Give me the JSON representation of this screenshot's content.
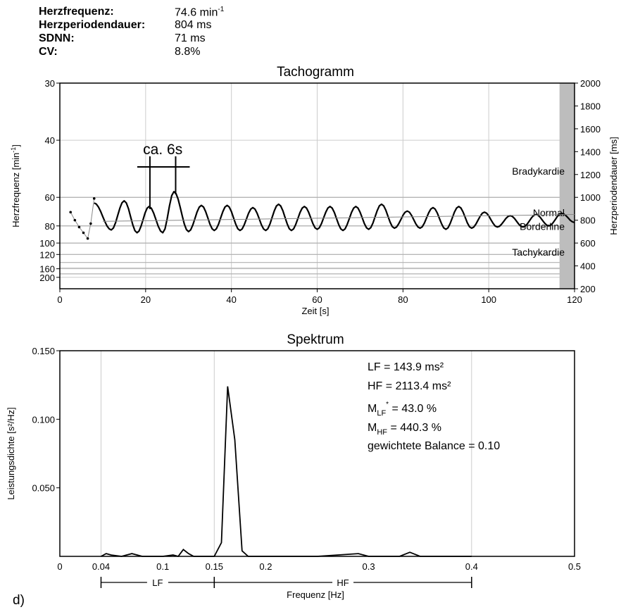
{
  "stats": {
    "heart_rate_label": "Herzfrequenz:",
    "heart_rate_value": "74.6 min",
    "heart_rate_unit_sup": "-1",
    "period_label": "Herzperiodendauer:",
    "period_value": "804 ms",
    "sdnn_label": "SDNN:",
    "sdnn_value": "71 ms",
    "cv_label": "CV:",
    "cv_value": "8.8%"
  },
  "panel_letter": "d)",
  "colors": {
    "line": "#000000",
    "grid": "#cccccc",
    "bands": "#b0b0b0",
    "shade": "#bdbdbd"
  },
  "chart_data": [
    {
      "type": "line",
      "title": "Tachogramm",
      "xlabel": "Zeit [s]",
      "ylabel_left": "Herzfrequenz [min",
      "ylabel_left_sup": "-1",
      "ylabel_left_end": "]",
      "ylabel_right": "Herzperiodendauer [ms]",
      "xlim": [
        0,
        120
      ],
      "ylim_right": [
        200,
        2000
      ],
      "x_ticks": [
        0,
        20,
        40,
        60,
        80,
        100,
        120
      ],
      "right_ticks": [
        200,
        400,
        600,
        800,
        1000,
        1200,
        1400,
        1600,
        1800,
        2000
      ],
      "left_ticks": [
        30,
        40,
        60,
        80,
        100,
        120,
        160,
        200
      ],
      "grid": true,
      "zones": [
        {
          "label": "Bradykardie",
          "boundary_ms": 1000
        },
        {
          "label": "Normal",
          "boundary_ms": 750
        },
        {
          "label": "Borderline",
          "boundary_ms": 600
        },
        {
          "label": "Tachykardie",
          "boundary_ms": 500
        }
      ],
      "extra_bands_ms": [
        430,
        380,
        330
      ],
      "annotation": {
        "text": "ca. 6s",
        "x_start": 21,
        "x_end": 27
      },
      "shaded_x": [
        116.5,
        120
      ],
      "series": [
        {
          "style": "dotted-start",
          "points": [
            [
              2.5,
              870
            ],
            [
              3.5,
              800
            ],
            [
              4.5,
              740
            ],
            [
              5.5,
              690
            ],
            [
              6.5,
              640
            ],
            [
              7.2,
              770
            ],
            [
              8,
              990
            ]
          ]
        },
        {
          "style": "rr",
          "mean": 800,
          "start": 8,
          "end": 120,
          "peaks": [
            [
              15,
              970
            ],
            [
              20.8,
              920
            ],
            [
              26.6,
              1050
            ],
            [
              33,
              930
            ],
            [
              39,
              930
            ],
            [
              45,
              910
            ],
            [
              51,
              940
            ],
            [
              57,
              920
            ],
            [
              63,
              920
            ],
            [
              69,
              920
            ],
            [
              75,
              940
            ],
            [
              81,
              880
            ],
            [
              87,
              910
            ],
            [
              93,
              920
            ],
            [
              99,
              870
            ],
            [
              105,
              840
            ],
            [
              111,
              850
            ],
            [
              117,
              860
            ]
          ],
          "troughs": [
            [
              12,
              715
            ],
            [
              18,
              690
            ],
            [
              24,
              690
            ],
            [
              30,
              700
            ],
            [
              36,
              710
            ],
            [
              42,
              710
            ],
            [
              48,
              710
            ],
            [
              54,
              710
            ],
            [
              60,
              720
            ],
            [
              66,
              710
            ],
            [
              72,
              720
            ],
            [
              78,
              730
            ],
            [
              84,
              730
            ],
            [
              90,
              720
            ],
            [
              96,
              730
            ],
            [
              102,
              740
            ],
            [
              108,
              740
            ],
            [
              114,
              750
            ],
            [
              120,
              780
            ]
          ]
        },
        {
          "style": "thin-mean",
          "points": [
            [
              10,
              790
            ],
            [
              120,
              850
            ]
          ]
        }
      ]
    },
    {
      "type": "line",
      "title": "Spektrum",
      "xlabel": "Frequenz [Hz]",
      "ylabel": "Leistungsdichte [s²/Hz]",
      "xlim": [
        0,
        0.5
      ],
      "ylim": [
        0,
        0.15
      ],
      "x_tick_labels": [
        "0",
        "0.04",
        "0.1",
        "0.15",
        "0.2",
        "0.3",
        "0.4",
        "0.5"
      ],
      "x_ticks": [
        0,
        0.04,
        0.1,
        0.15,
        0.2,
        0.3,
        0.4,
        0.5
      ],
      "y_tick_labels": [
        "0.050",
        "0.100",
        "0.150"
      ],
      "y_ticks": [
        0.05,
        0.1,
        0.15
      ],
      "grid_x": [
        0.04,
        0.15,
        0.4
      ],
      "band_labels": [
        {
          "label": "LF",
          "from": 0.04,
          "to": 0.15
        },
        {
          "label": "HF",
          "from": 0.15,
          "to": 0.4
        }
      ],
      "annotations": {
        "lf": "LF = 143.9 ms²",
        "hf": "HF = 2113.4 ms²",
        "mlf_base": "M",
        "mlf_sub": "LF",
        "mlf_sup": "*",
        "mlf_rest": " = 43.0 %",
        "mhf_base": "M",
        "mhf_sub": "HF",
        "mhf_rest": " = 440.3 %",
        "balance": "gewichtete Balance = 0.10"
      },
      "values": [
        [
          0.04,
          0.0
        ],
        [
          0.045,
          0.002
        ],
        [
          0.05,
          0.001
        ],
        [
          0.06,
          0.0
        ],
        [
          0.07,
          0.002
        ],
        [
          0.08,
          0.0
        ],
        [
          0.1,
          0.0
        ],
        [
          0.11,
          0.001
        ],
        [
          0.115,
          0.0
        ],
        [
          0.12,
          0.005
        ],
        [
          0.125,
          0.002
        ],
        [
          0.13,
          0.0
        ],
        [
          0.15,
          0.0
        ],
        [
          0.157,
          0.01
        ],
        [
          0.163,
          0.124
        ],
        [
          0.17,
          0.085
        ],
        [
          0.177,
          0.004
        ],
        [
          0.183,
          0.0
        ],
        [
          0.25,
          0.0
        ],
        [
          0.29,
          0.002
        ],
        [
          0.3,
          0.0
        ],
        [
          0.33,
          0.0
        ],
        [
          0.34,
          0.003
        ],
        [
          0.35,
          0.0
        ],
        [
          0.4,
          0.0
        ]
      ]
    }
  ]
}
